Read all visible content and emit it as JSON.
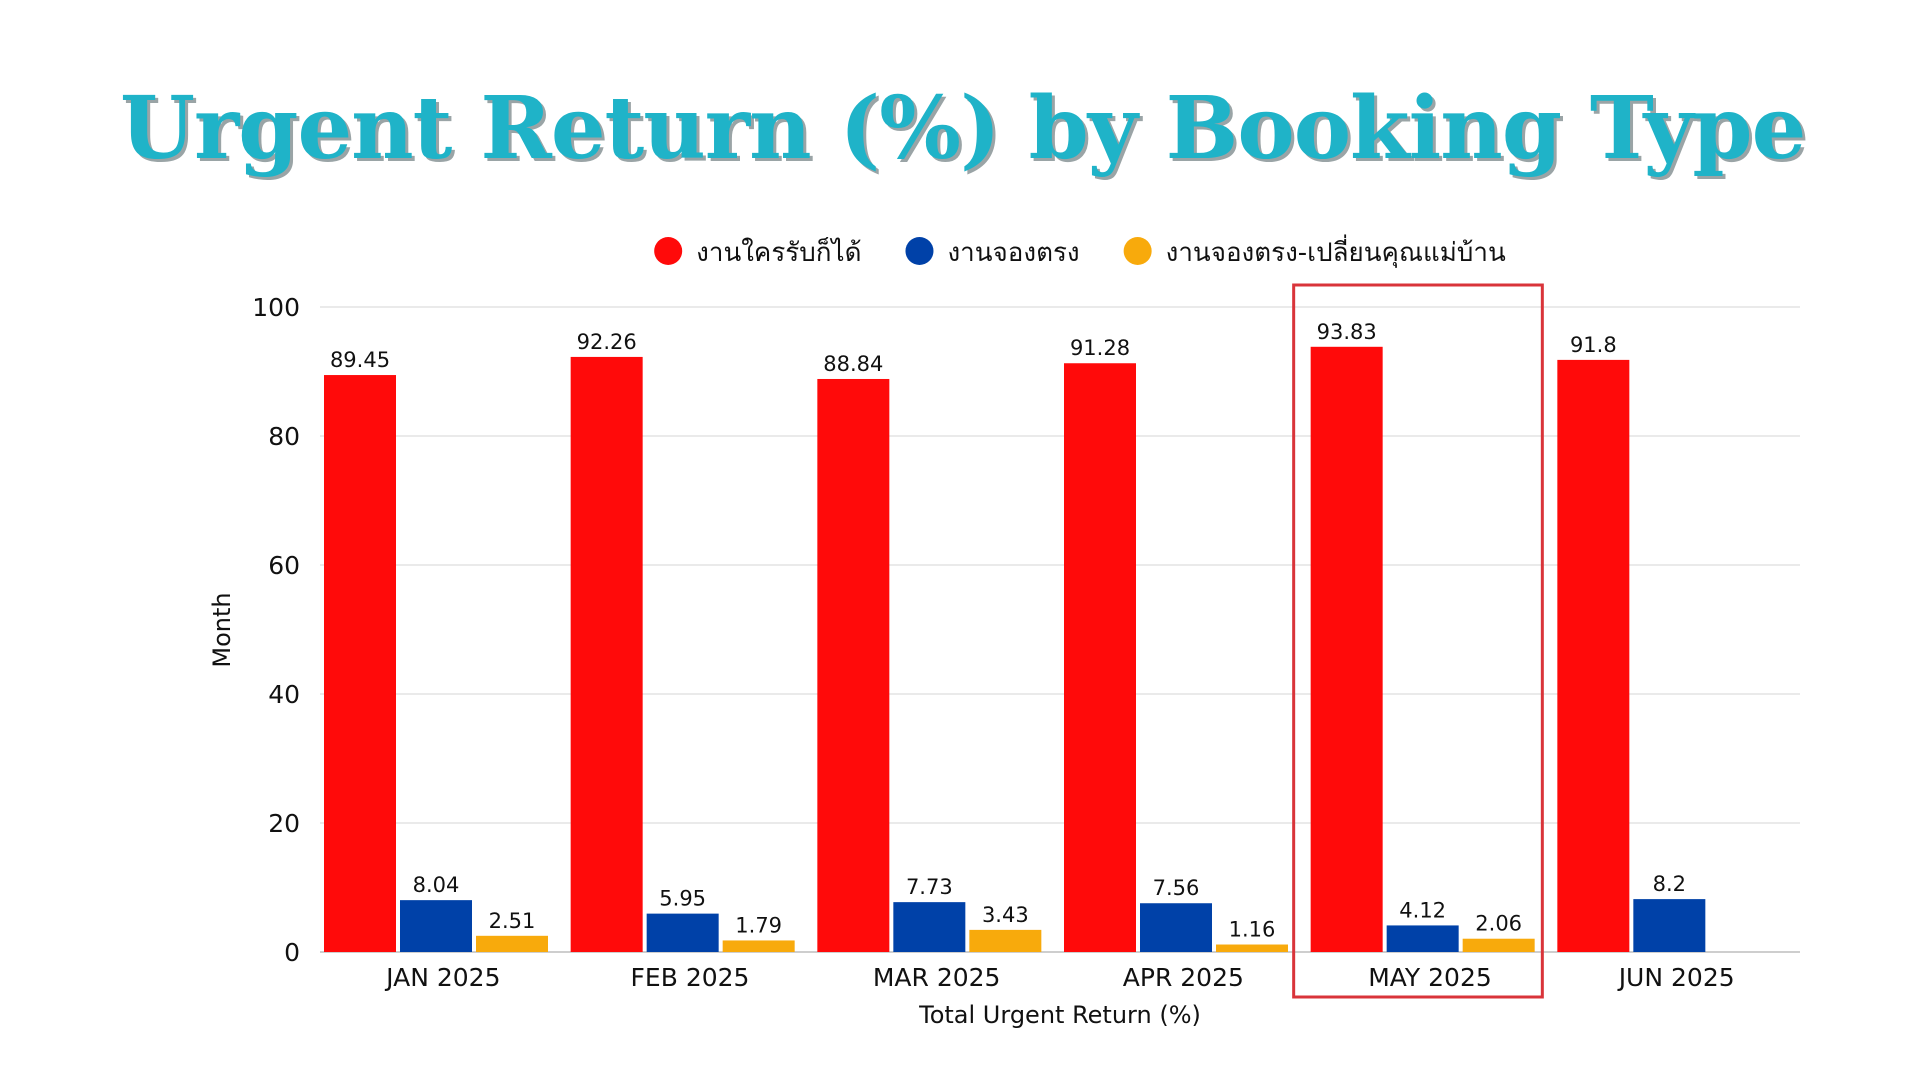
{
  "chart_data": {
    "type": "bar",
    "title": "Urgent Return (%) by Booking Type",
    "xlabel": "Total Urgent Return (%)",
    "ylabel": "Month",
    "ylim": [
      0,
      100
    ],
    "yticks": [
      0,
      20,
      40,
      60,
      80,
      100
    ],
    "grid": true,
    "legend_position": "top",
    "categories": [
      "JAN 2025",
      "FEB 2025",
      "MAR 2025",
      "APR 2025",
      "MAY 2025",
      "JUN 2025"
    ],
    "series": [
      {
        "name": "งานใครรับก็ได้",
        "color": "#ff0a0a",
        "values": [
          89.45,
          92.26,
          88.84,
          91.28,
          93.83,
          91.8
        ]
      },
      {
        "name": "งานจองตรง",
        "color": "#0041a8",
        "values": [
          8.04,
          5.95,
          7.73,
          7.56,
          4.12,
          8.2
        ]
      },
      {
        "name": "งานจองตรง-เปลี่ยนคุณแม่บ้าน",
        "color": "#f8aa0c",
        "values": [
          2.51,
          1.79,
          3.43,
          1.16,
          2.06,
          null
        ]
      }
    ],
    "highlight": {
      "category": "MAY 2025",
      "color": "#d9343a"
    }
  }
}
